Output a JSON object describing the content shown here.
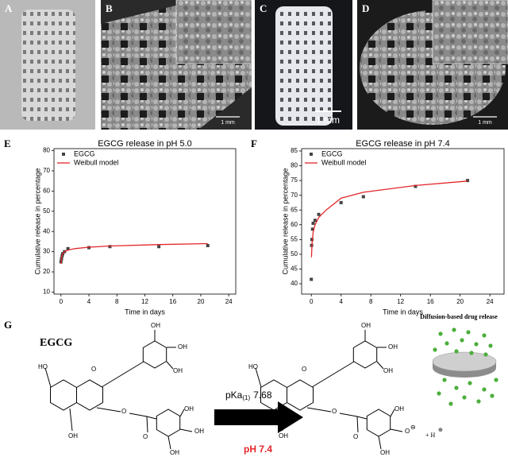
{
  "panels": {
    "labels": [
      "A",
      "B",
      "C",
      "D",
      "E",
      "F",
      "G"
    ],
    "scale_bars": [
      "1 mm",
      "1 mm",
      "1 mm"
    ]
  },
  "chart_data": [
    {
      "type": "scatter",
      "title": "EGCG release in pH 5.0",
      "xlabel": "Time in days",
      "ylabel": "Cumulative release in percentage",
      "xlim": [
        -1,
        25
      ],
      "ylim": [
        9,
        81
      ],
      "xticks": [
        0,
        4,
        8,
        12,
        16,
        20,
        24
      ],
      "yticks": [
        10,
        20,
        30,
        40,
        50,
        60,
        70,
        80
      ],
      "legend": "upper left",
      "series": [
        {
          "name": "EGCG",
          "color": "#444444",
          "style": "square",
          "x": [
            0,
            0.08,
            0.17,
            0.25,
            0.5,
            1,
            4,
            7,
            14,
            21
          ],
          "values": [
            25,
            26.5,
            28,
            29,
            30,
            31.5,
            32,
            32.5,
            32.5,
            33
          ]
        },
        {
          "name": "Weibull model",
          "color": "#e3262a",
          "style": "line",
          "x": [
            0.02,
            0.1,
            0.25,
            0.5,
            1,
            2,
            4,
            7,
            14,
            21
          ],
          "values": [
            24,
            27.5,
            29,
            30,
            30.8,
            31.5,
            32.2,
            32.8,
            33.5,
            34
          ]
        }
      ]
    },
    {
      "type": "scatter",
      "title": "EGCG release in pH 7.4",
      "xlabel": "Time in days",
      "ylabel": "Cumulative release in percentage",
      "xlim": [
        -1.3,
        25.9
      ],
      "ylim": [
        36.5,
        85.8
      ],
      "xticks": [
        0,
        4,
        8,
        12,
        16,
        20,
        24
      ],
      "yticks": [
        40,
        45,
        50,
        55,
        60,
        65,
        70,
        75,
        80,
        85
      ],
      "legend": "upper left",
      "series": [
        {
          "name": "EGCG",
          "color": "#444444",
          "style": "square",
          "x": [
            0,
            0.04,
            0.08,
            0.17,
            0.25,
            0.5,
            1,
            4,
            7,
            14,
            21
          ],
          "values": [
            41.5,
            53,
            55,
            58.5,
            60.5,
            61.5,
            63.5,
            67.5,
            69.5,
            73,
            75
          ]
        },
        {
          "name": "Weibull model",
          "color": "#e3262a",
          "style": "line",
          "x": [
            0.02,
            0.1,
            0.25,
            0.5,
            1,
            2,
            4,
            7,
            14,
            21
          ],
          "values": [
            49,
            53.5,
            57.5,
            60,
            62.5,
            65,
            69,
            71,
            73.3,
            74.8
          ]
        }
      ]
    }
  ],
  "panel_g": {
    "title": "EGCG",
    "left_labels": [
      "OH",
      "OH",
      "OH",
      "HO",
      "O",
      "OH",
      "O",
      "O",
      "OH",
      "OH",
      "OH"
    ],
    "right_labels": [
      "OH",
      "OH",
      "OH",
      "HO",
      "O",
      "OH",
      "O",
      "O",
      "OH",
      "O",
      "OH"
    ],
    "charge": "⊖",
    "pka": "pKa",
    "pka_sub": "(1)",
    "pka_value": "7.68",
    "condition": "pH 7.4",
    "proton": "+ H",
    "proton_charge": "⊕",
    "diffusion_title": "Diffusion-based drug release"
  }
}
